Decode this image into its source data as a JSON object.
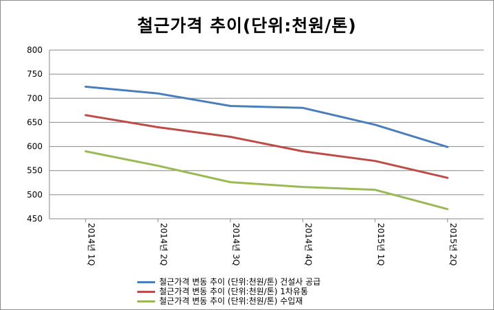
{
  "chart_data": {
    "type": "line",
    "title": "철근가격 추이(단위:천원/톤)",
    "categories": [
      "2014년 1Q",
      "2014년 2Q",
      "2014년 3Q",
      "2014년 4Q",
      "2015년 1Q",
      "2015년 2Q"
    ],
    "yticks": [
      "800",
      "750",
      "700",
      "650",
      "600",
      "550",
      "500",
      "450"
    ],
    "ylim": [
      450,
      800
    ],
    "grid": true,
    "legend_position": "bottom",
    "series": [
      {
        "name": "철근가격 변동 추이 (단위:천원/톤) 건설사 공급",
        "color": "#4a7ebb",
        "values": [
          724,
          710,
          684,
          680,
          645,
          599
        ]
      },
      {
        "name": "철근가격 변동 추이 (단위:천원/톤) 1차유통",
        "color": "#be4b48",
        "values": [
          665,
          640,
          620,
          590,
          570,
          535
        ]
      },
      {
        "name": "철근가격 변동 추이 (단위:천원/톤) 수입재",
        "color": "#98b954",
        "values": [
          590,
          560,
          526,
          516,
          510,
          470
        ]
      }
    ]
  }
}
